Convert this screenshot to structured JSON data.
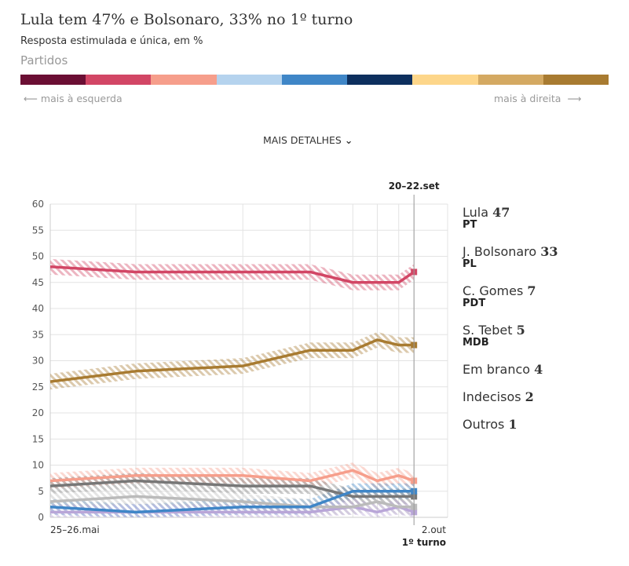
{
  "header": {
    "title": "Lula tem 47% e Bolsonaro, 33% no 1º turno",
    "subtitle": "Resposta estimulada e única, em %",
    "parties_label": "Partidos",
    "left_label": "mais à esquerda",
    "right_label": "mais à direita",
    "details_button": "MAIS DETALHES"
  },
  "party_colors": [
    "#6b0f34",
    "#d24665",
    "#f69e8b",
    "#b5d3ee",
    "#3f86c7",
    "#0d2f5e",
    "#fdd68a",
    "#d4a962",
    "#a87b31"
  ],
  "chart_data": {
    "type": "line",
    "x": [
      "2022-05-25",
      "2022-06-22",
      "2022-07-27",
      "2022-08-18",
      "2022-09-01",
      "2022-09-09",
      "2022-09-16",
      "2022-09-21"
    ],
    "x_range": [
      "2022-05-25",
      "2022-10-02"
    ],
    "x_tick_labels": [
      "25–26.mai",
      "2.out"
    ],
    "x_end_sublabel": "1º turno",
    "highlight_label": "20–22.set",
    "ylim": [
      0,
      60
    ],
    "yticks": [
      0,
      5,
      10,
      15,
      20,
      25,
      30,
      35,
      40,
      45,
      50,
      55,
      60
    ],
    "grid": true,
    "legend": "right",
    "series": [
      {
        "name": "Lula",
        "party": "PT",
        "last": "47",
        "color": "#d24665",
        "values": [
          48,
          47,
          47,
          47,
          45,
          45,
          45,
          47
        ]
      },
      {
        "name": "J. Bolsonaro",
        "party": "PL",
        "last": "33",
        "color": "#a87b31",
        "values": [
          26,
          28,
          29,
          32,
          32,
          34,
          33,
          33
        ]
      },
      {
        "name": "C. Gomes",
        "party": "PDT",
        "last": "7",
        "color": "#f69e8b",
        "values": [
          7,
          8,
          8,
          7,
          9,
          7,
          8,
          7
        ]
      },
      {
        "name": "S. Tebet",
        "party": "MDB",
        "last": "5",
        "color": "#3f86c7",
        "values": [
          2,
          1,
          2,
          2,
          5,
          5,
          5,
          5
        ]
      },
      {
        "name": "Em branco",
        "party": "",
        "last": "4",
        "color": "#777777",
        "values": [
          6,
          7,
          6,
          6,
          4,
          4,
          4,
          4
        ]
      },
      {
        "name": "Indecisos",
        "party": "",
        "last": "2",
        "color": "#bbbbbb",
        "values": [
          3,
          4,
          3,
          2,
          2,
          3,
          2,
          2
        ]
      },
      {
        "name": "Outros",
        "party": "",
        "last": "1",
        "color": "#b9a6d8",
        "values": [
          1,
          1,
          1,
          1,
          2,
          1,
          2,
          1
        ]
      }
    ]
  }
}
